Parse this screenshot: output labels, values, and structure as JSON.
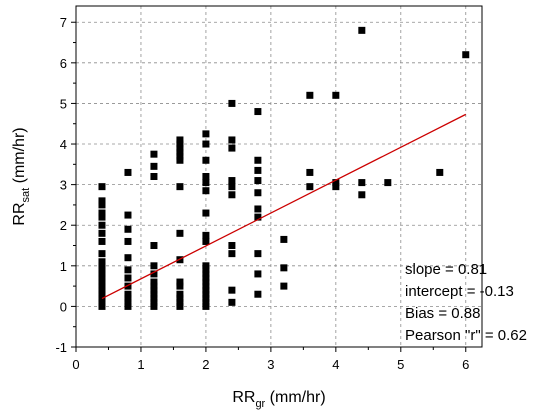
{
  "chart_data": {
    "type": "scatter",
    "xlabel": {
      "main": "RR",
      "sub": "gr",
      "unit": " (mm/hr)"
    },
    "ylabel": {
      "main": "RR",
      "sub": "sat",
      "unit": " (mm/hr)"
    },
    "xlim": [
      0,
      6.25
    ],
    "ylim": [
      -1,
      7.4
    ],
    "xticks": [
      "0",
      "1",
      "2",
      "3",
      "4",
      "5",
      "6"
    ],
    "yticks": [
      "-1",
      "0",
      "1",
      "2",
      "3",
      "4",
      "5",
      "6",
      "7"
    ],
    "grid": true,
    "marker_color": "#000000",
    "fit_color": "#cc0000",
    "fit_line": {
      "slope": 0.81,
      "intercept": -0.13,
      "x_start": 0.4,
      "x_end": 6.0
    },
    "stats": [
      "slope = 0.81",
      "intercept = -0.13",
      "Bias = 0.88",
      "Pearson \"r\" = 0.62"
    ],
    "points": [
      {
        "x": 0.4,
        "y": 0.0
      },
      {
        "x": 0.4,
        "y": 0.1
      },
      {
        "x": 0.4,
        "y": 0.2
      },
      {
        "x": 0.4,
        "y": 0.3
      },
      {
        "x": 0.4,
        "y": 0.4
      },
      {
        "x": 0.4,
        "y": 0.5
      },
      {
        "x": 0.4,
        "y": 0.6
      },
      {
        "x": 0.4,
        "y": 0.7
      },
      {
        "x": 0.4,
        "y": 0.8
      },
      {
        "x": 0.4,
        "y": 0.9
      },
      {
        "x": 0.4,
        "y": 1.0
      },
      {
        "x": 0.4,
        "y": 1.1
      },
      {
        "x": 0.4,
        "y": 1.3
      },
      {
        "x": 0.4,
        "y": 1.6
      },
      {
        "x": 0.4,
        "y": 1.8
      },
      {
        "x": 0.4,
        "y": 2.0
      },
      {
        "x": 0.4,
        "y": 2.2
      },
      {
        "x": 0.4,
        "y": 2.3
      },
      {
        "x": 0.4,
        "y": 2.5
      },
      {
        "x": 0.4,
        "y": 2.6
      },
      {
        "x": 0.4,
        "y": 2.95
      },
      {
        "x": 0.8,
        "y": 0.0
      },
      {
        "x": 0.8,
        "y": 0.1
      },
      {
        "x": 0.8,
        "y": 0.2
      },
      {
        "x": 0.8,
        "y": 0.3
      },
      {
        "x": 0.8,
        "y": 0.5
      },
      {
        "x": 0.8,
        "y": 0.7
      },
      {
        "x": 0.8,
        "y": 0.9
      },
      {
        "x": 0.8,
        "y": 1.2
      },
      {
        "x": 0.8,
        "y": 1.6
      },
      {
        "x": 0.8,
        "y": 1.9
      },
      {
        "x": 0.8,
        "y": 2.25
      },
      {
        "x": 0.8,
        "y": 3.3
      },
      {
        "x": 1.2,
        "y": 0.0
      },
      {
        "x": 1.2,
        "y": 0.1
      },
      {
        "x": 1.2,
        "y": 0.2
      },
      {
        "x": 1.2,
        "y": 0.3
      },
      {
        "x": 1.2,
        "y": 0.4
      },
      {
        "x": 1.2,
        "y": 0.5
      },
      {
        "x": 1.2,
        "y": 0.6
      },
      {
        "x": 1.2,
        "y": 0.8
      },
      {
        "x": 1.2,
        "y": 1.0
      },
      {
        "x": 1.2,
        "y": 1.5
      },
      {
        "x": 1.2,
        "y": 3.2
      },
      {
        "x": 1.2,
        "y": 3.45
      },
      {
        "x": 1.2,
        "y": 3.75
      },
      {
        "x": 1.6,
        "y": 0.0
      },
      {
        "x": 1.6,
        "y": 0.1
      },
      {
        "x": 1.6,
        "y": 0.2
      },
      {
        "x": 1.6,
        "y": 0.3
      },
      {
        "x": 1.6,
        "y": 0.5
      },
      {
        "x": 1.6,
        "y": 0.6
      },
      {
        "x": 1.6,
        "y": 1.15
      },
      {
        "x": 1.6,
        "y": 1.8
      },
      {
        "x": 1.6,
        "y": 2.95
      },
      {
        "x": 1.6,
        "y": 3.6
      },
      {
        "x": 1.6,
        "y": 3.7
      },
      {
        "x": 1.6,
        "y": 3.8
      },
      {
        "x": 1.6,
        "y": 3.9
      },
      {
        "x": 1.6,
        "y": 4.0
      },
      {
        "x": 1.6,
        "y": 4.1
      },
      {
        "x": 2.0,
        "y": 0.0
      },
      {
        "x": 2.0,
        "y": 0.1
      },
      {
        "x": 2.0,
        "y": 0.2
      },
      {
        "x": 2.0,
        "y": 0.3
      },
      {
        "x": 2.0,
        "y": 0.4
      },
      {
        "x": 2.0,
        "y": 0.5
      },
      {
        "x": 2.0,
        "y": 0.6
      },
      {
        "x": 2.0,
        "y": 0.7
      },
      {
        "x": 2.0,
        "y": 0.8
      },
      {
        "x": 2.0,
        "y": 0.9
      },
      {
        "x": 2.0,
        "y": 1.0
      },
      {
        "x": 2.0,
        "y": 1.6
      },
      {
        "x": 2.0,
        "y": 1.75
      },
      {
        "x": 2.0,
        "y": 2.3
      },
      {
        "x": 2.0,
        "y": 2.85
      },
      {
        "x": 2.0,
        "y": 3.05
      },
      {
        "x": 2.0,
        "y": 3.2
      },
      {
        "x": 2.0,
        "y": 3.6
      },
      {
        "x": 2.0,
        "y": 4.0
      },
      {
        "x": 2.0,
        "y": 4.25
      },
      {
        "x": 2.4,
        "y": 0.1
      },
      {
        "x": 2.4,
        "y": 0.4
      },
      {
        "x": 2.4,
        "y": 1.3
      },
      {
        "x": 2.4,
        "y": 1.5
      },
      {
        "x": 2.4,
        "y": 2.75
      },
      {
        "x": 2.4,
        "y": 2.95
      },
      {
        "x": 2.4,
        "y": 3.1
      },
      {
        "x": 2.4,
        "y": 3.9
      },
      {
        "x": 2.4,
        "y": 4.1
      },
      {
        "x": 2.4,
        "y": 5.0
      },
      {
        "x": 2.8,
        "y": 0.3
      },
      {
        "x": 2.8,
        "y": 0.8
      },
      {
        "x": 2.8,
        "y": 1.3
      },
      {
        "x": 2.8,
        "y": 2.2
      },
      {
        "x": 2.8,
        "y": 2.4
      },
      {
        "x": 2.8,
        "y": 2.8
      },
      {
        "x": 2.8,
        "y": 3.1
      },
      {
        "x": 2.8,
        "y": 3.35
      },
      {
        "x": 2.8,
        "y": 3.6
      },
      {
        "x": 2.8,
        "y": 4.8
      },
      {
        "x": 3.2,
        "y": 0.5
      },
      {
        "x": 3.2,
        "y": 0.95
      },
      {
        "x": 3.2,
        "y": 1.65
      },
      {
        "x": 3.6,
        "y": 2.95
      },
      {
        "x": 3.6,
        "y": 3.3
      },
      {
        "x": 3.6,
        "y": 5.2
      },
      {
        "x": 4.0,
        "y": 2.95
      },
      {
        "x": 4.0,
        "y": 3.05
      },
      {
        "x": 4.0,
        "y": 5.2
      },
      {
        "x": 4.4,
        "y": 2.75
      },
      {
        "x": 4.4,
        "y": 3.05
      },
      {
        "x": 4.4,
        "y": 6.8
      },
      {
        "x": 4.8,
        "y": 3.05
      },
      {
        "x": 5.6,
        "y": 3.3
      },
      {
        "x": 6.0,
        "y": 6.2
      }
    ]
  }
}
